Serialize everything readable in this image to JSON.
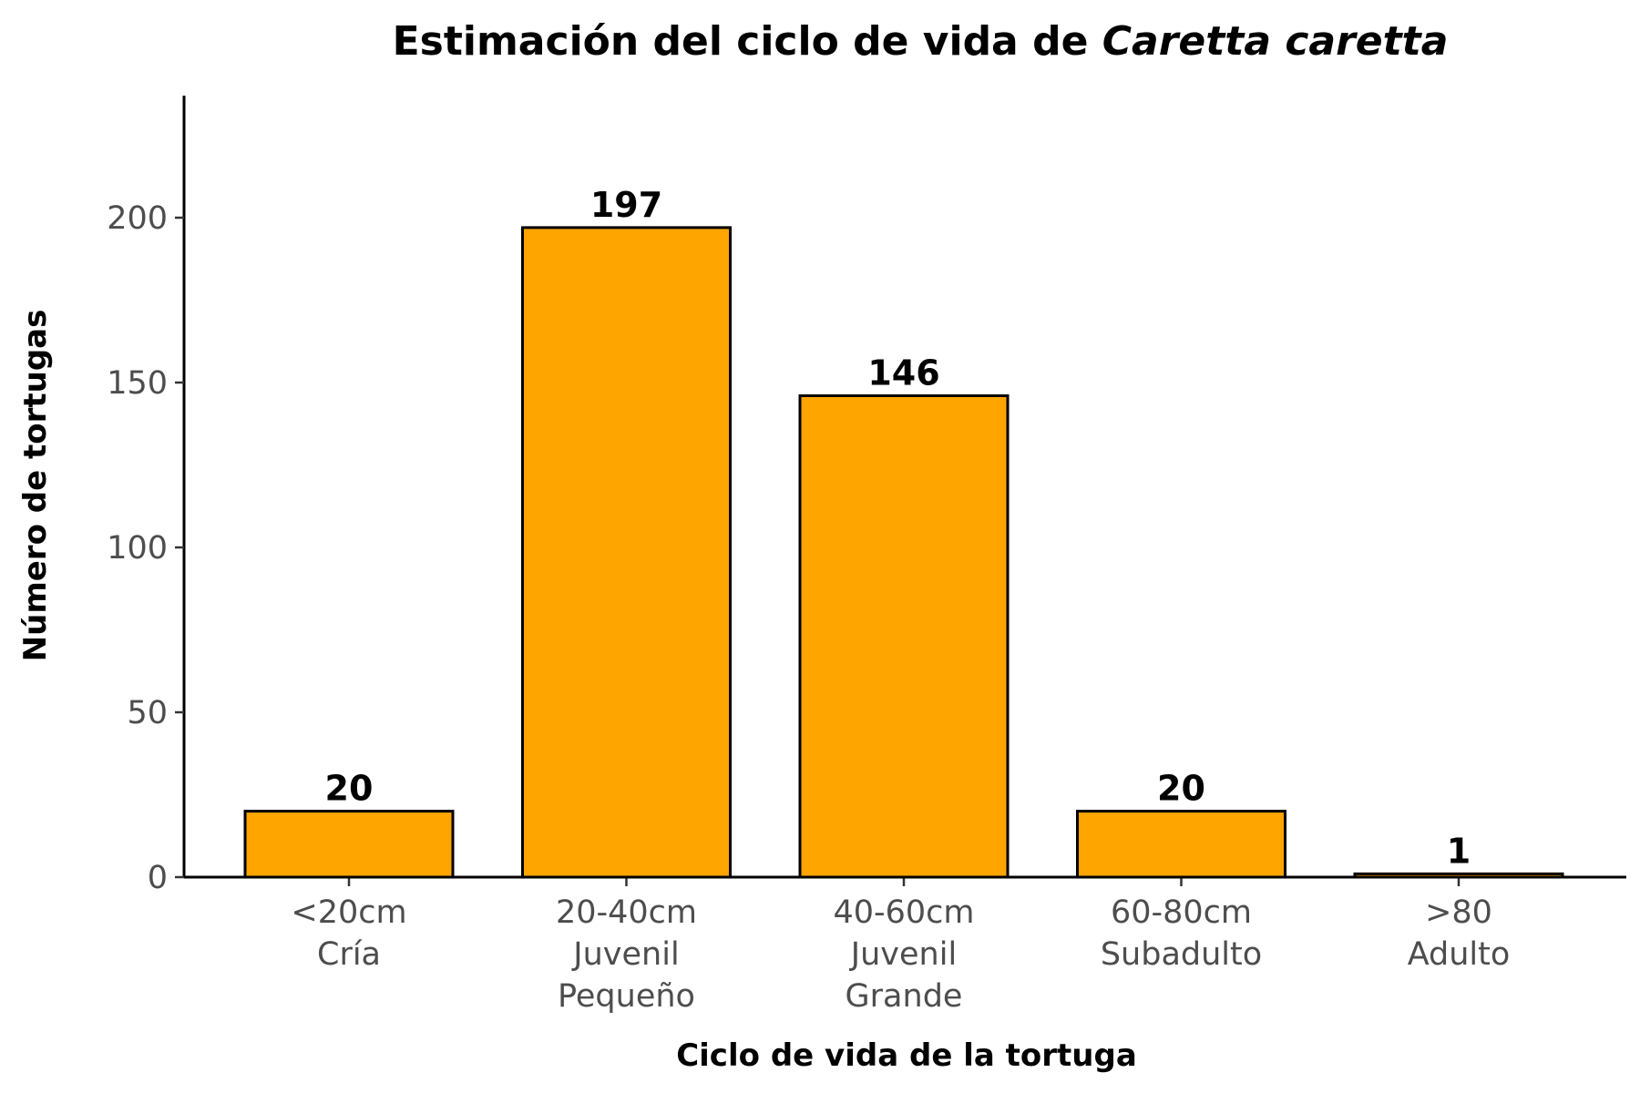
{
  "chart_data": {
    "type": "bar",
    "title": "Estimación del ciclo de vida de",
    "title_italic": "Caretta caretta",
    "xlabel": "Ciclo de vida de la tortuga",
    "ylabel": "Número de tortugas",
    "categories": [
      [
        "<20cm",
        "Cría"
      ],
      [
        "20-40cm",
        "Juvenil",
        "Pequeño"
      ],
      [
        "40-60cm",
        "Juvenil",
        "Grande"
      ],
      [
        "60-80cm",
        "Subadulto"
      ],
      [
        ">80",
        "Adulto"
      ]
    ],
    "values": [
      20,
      197,
      146,
      20,
      1
    ],
    "data_labels": [
      "20",
      "197",
      "146",
      "20",
      "1"
    ],
    "yticks": [
      0,
      50,
      100,
      150,
      200
    ],
    "ytick_labels": [
      "0",
      "50",
      "100",
      "150",
      "200"
    ],
    "ylim": [
      0,
      230
    ],
    "grid": false,
    "legend": "none",
    "colors": {
      "bar_fill": "#FFA500",
      "bar_stroke": "#000000"
    }
  }
}
